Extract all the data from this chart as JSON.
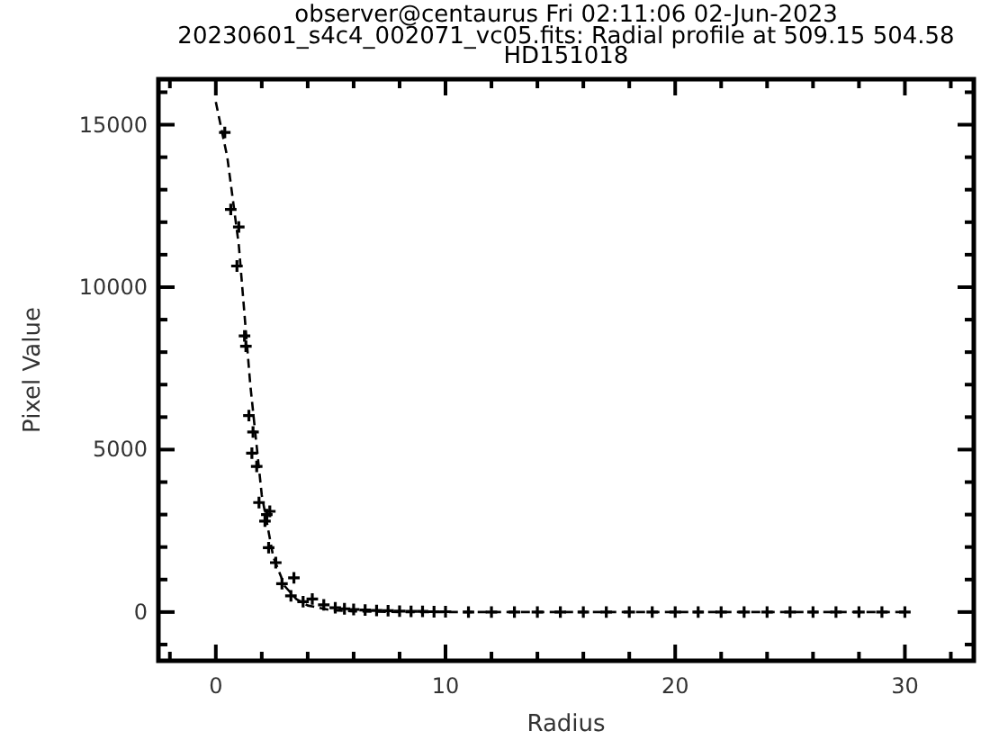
{
  "chart_data": {
    "type": "scatter",
    "title": "observer@centaurus Fri 02:11:06 02-Jun-2023",
    "subtitle": "20230601_s4c4_002071_vc05.fits: Radial profile at 509.15 504.58\nHD151018",
    "xlabel": "Radius",
    "ylabel": "Pixel Value",
    "marker": "cross",
    "xlim": [
      -2.5,
      33
    ],
    "ylim": [
      -1500,
      16400
    ],
    "xticks": [
      {
        "value": -2,
        "label": null
      },
      0,
      {
        "value": 2,
        "label": null
      },
      {
        "value": 4,
        "label": null
      },
      {
        "value": 6,
        "label": null
      },
      {
        "value": 8,
        "label": null
      },
      10,
      {
        "value": 12,
        "label": null
      },
      {
        "value": 14,
        "label": null
      },
      {
        "value": 16,
        "label": null
      },
      {
        "value": 18,
        "label": null
      },
      20,
      {
        "value": 22,
        "label": null
      },
      {
        "value": 24,
        "label": null
      },
      {
        "value": 26,
        "label": null
      },
      {
        "value": 28,
        "label": null
      },
      30,
      {
        "value": 32,
        "label": null
      }
    ],
    "yticks": [
      {
        "value": -1000,
        "label": null
      },
      0,
      {
        "value": 1000,
        "label": null
      },
      {
        "value": 2000,
        "label": null
      },
      {
        "value": 3000,
        "label": null
      },
      {
        "value": 4000,
        "label": null
      },
      5000,
      {
        "value": 6000,
        "label": null
      },
      {
        "value": 7000,
        "label": null
      },
      {
        "value": 8000,
        "label": null
      },
      {
        "value": 9000,
        "label": null
      },
      10000,
      {
        "value": 11000,
        "label": null
      },
      {
        "value": 12000,
        "label": null
      },
      {
        "value": 13000,
        "label": null
      },
      {
        "value": 14000,
        "label": null
      },
      15000,
      {
        "value": 16000,
        "label": null
      }
    ],
    "series": [
      {
        "color": "#000000",
        "x": [
          0.39,
          0.65,
          0.92,
          1.0,
          1.25,
          1.31,
          1.44,
          1.57,
          1.62,
          1.78,
          1.88,
          2.14,
          2.22,
          2.3,
          2.35,
          2.61,
          2.88,
          3.27,
          3.4,
          3.8,
          4.2,
          4.7,
          5.2,
          5.6,
          6.0,
          6.5,
          7.0,
          7.5,
          8.0,
          8.5,
          9.0,
          9.5,
          10,
          11,
          12,
          13,
          14,
          15,
          16,
          17,
          18,
          19,
          20,
          21,
          22,
          23,
          24,
          25,
          26,
          27,
          28,
          29,
          30
        ],
        "values": [
          14760,
          12390,
          10650,
          11850,
          8500,
          8180,
          6050,
          4890,
          5540,
          4480,
          3370,
          2800,
          3000,
          1980,
          3100,
          1520,
          870,
          500,
          1050,
          320,
          400,
          220,
          130,
          100,
          80,
          60,
          50,
          40,
          30,
          20,
          20,
          10,
          10,
          0,
          0,
          0,
          0,
          0,
          0,
          0,
          0,
          0,
          0,
          0,
          0,
          0,
          0,
          0,
          0,
          0,
          0,
          0,
          0
        ]
      },
      {
        "type": "line",
        "color": "#000000",
        "line_style": "dashed",
        "marker": "none",
        "x": [
          0,
          0.5,
          1,
          1.5,
          2,
          2.5,
          3,
          3.5,
          4,
          5,
          6,
          8,
          10,
          30
        ],
        "values": [
          15700,
          14000,
          11300,
          7000,
          3600,
          1700,
          800,
          400,
          200,
          60,
          20,
          0,
          0,
          0
        ]
      }
    ]
  }
}
